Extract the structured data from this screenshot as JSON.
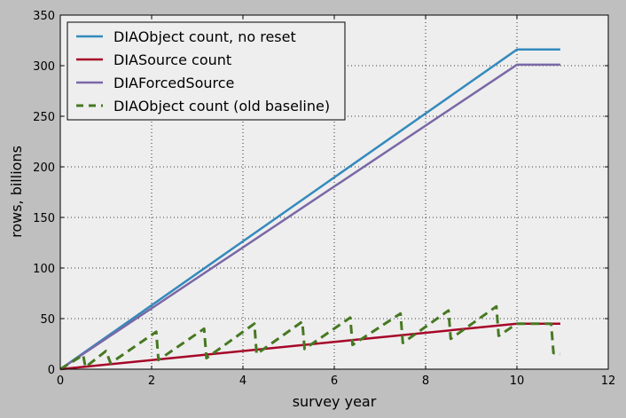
{
  "chart_data": {
    "type": "line",
    "title": "",
    "xlabel": "survey year",
    "ylabel": "rows, billions",
    "xlim": [
      0,
      12
    ],
    "ylim": [
      0,
      350
    ],
    "xticks": [
      0,
      2,
      4,
      6,
      8,
      10,
      12
    ],
    "yticks": [
      0,
      50,
      100,
      150,
      200,
      250,
      300,
      350
    ],
    "grid": true,
    "legend_position": "top-left",
    "series": [
      {
        "name": "DIAObject count, no reset",
        "color": "#348abd",
        "style": "solid",
        "points": [
          [
            0,
            0
          ],
          [
            10,
            316
          ],
          [
            10.95,
            316
          ]
        ]
      },
      {
        "name": "DIASource count",
        "color": "#a60628",
        "style": "solid",
        "points": [
          [
            0,
            0
          ],
          [
            10,
            45
          ],
          [
            10.95,
            45
          ]
        ]
      },
      {
        "name": "DIAForcedSource",
        "color": "#7a68a6",
        "style": "solid",
        "points": [
          [
            0,
            0
          ],
          [
            10,
            301
          ],
          [
            10.95,
            301
          ]
        ]
      },
      {
        "name": "DIAObject count (old baseline)",
        "color": "#467821",
        "style": "dashed",
        "points": [
          [
            0,
            0
          ],
          [
            0.5,
            14
          ],
          [
            0.55,
            2
          ],
          [
            1.0,
            18
          ],
          [
            1.1,
            6
          ],
          [
            2.1,
            37
          ],
          [
            2.15,
            9
          ],
          [
            3.15,
            40
          ],
          [
            3.2,
            11
          ],
          [
            4.25,
            45
          ],
          [
            4.3,
            15
          ],
          [
            5.3,
            47
          ],
          [
            5.35,
            20
          ],
          [
            6.35,
            51
          ],
          [
            6.4,
            24
          ],
          [
            7.45,
            55
          ],
          [
            7.5,
            26
          ],
          [
            8.5,
            58
          ],
          [
            8.55,
            30
          ],
          [
            9.55,
            62
          ],
          [
            9.6,
            33
          ],
          [
            10.0,
            45
          ],
          [
            10.45,
            45
          ],
          [
            10.5,
            45
          ],
          [
            10.55,
            45
          ],
          [
            10.75,
            45
          ],
          [
            10.8,
            16
          ],
          [
            10.95,
            15
          ]
        ]
      }
    ]
  }
}
